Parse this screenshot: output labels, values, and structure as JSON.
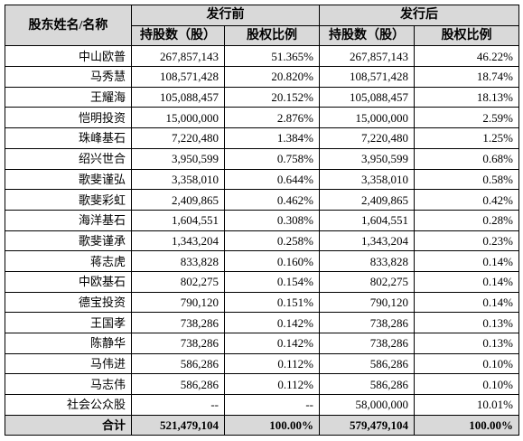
{
  "table": {
    "header": {
      "name": "股东姓名/名称",
      "groups": [
        "发行前",
        "发行后"
      ],
      "columns": [
        "持股数（股）",
        "股权比例",
        "持股数（股）",
        "股权比例"
      ]
    },
    "rows": [
      [
        "中山欧普",
        "267,857,143",
        "51.365%",
        "267,857,143",
        "46.22%"
      ],
      [
        "马秀慧",
        "108,571,428",
        "20.820%",
        "108,571,428",
        "18.74%"
      ],
      [
        "王耀海",
        "105,088,457",
        "20.152%",
        "105,088,457",
        "18.13%"
      ],
      [
        "恺明投资",
        "15,000,000",
        "2.876%",
        "15,000,000",
        "2.59%"
      ],
      [
        "珠峰基石",
        "7,220,480",
        "1.384%",
        "7,220,480",
        "1.25%"
      ],
      [
        "绍兴世合",
        "3,950,599",
        "0.758%",
        "3,950,599",
        "0.68%"
      ],
      [
        "歌斐谨弘",
        "3,358,010",
        "0.644%",
        "3,358,010",
        "0.58%"
      ],
      [
        "歌斐彩虹",
        "2,409,865",
        "0.462%",
        "2,409,865",
        "0.42%"
      ],
      [
        "海洋基石",
        "1,604,551",
        "0.308%",
        "1,604,551",
        "0.28%"
      ],
      [
        "歌斐谨承",
        "1,343,204",
        "0.258%",
        "1,343,204",
        "0.23%"
      ],
      [
        "蒋志虎",
        "833,828",
        "0.160%",
        "833,828",
        "0.14%"
      ],
      [
        "中欧基石",
        "802,275",
        "0.154%",
        "802,275",
        "0.14%"
      ],
      [
        "德宝投资",
        "790,120",
        "0.151%",
        "790,120",
        "0.14%"
      ],
      [
        "王国孝",
        "738,286",
        "0.142%",
        "738,286",
        "0.13%"
      ],
      [
        "陈静华",
        "738,286",
        "0.142%",
        "738,286",
        "0.13%"
      ],
      [
        "马伟进",
        "586,286",
        "0.112%",
        "586,286",
        "0.10%"
      ],
      [
        "马志伟",
        "586,286",
        "0.112%",
        "586,286",
        "0.10%"
      ],
      [
        "社会公众股",
        "--",
        "--",
        "58,000,000",
        "10.01%"
      ]
    ],
    "total": [
      "合计",
      "521,479,104",
      "100.00%",
      "579,479,104",
      "100.00%"
    ]
  }
}
